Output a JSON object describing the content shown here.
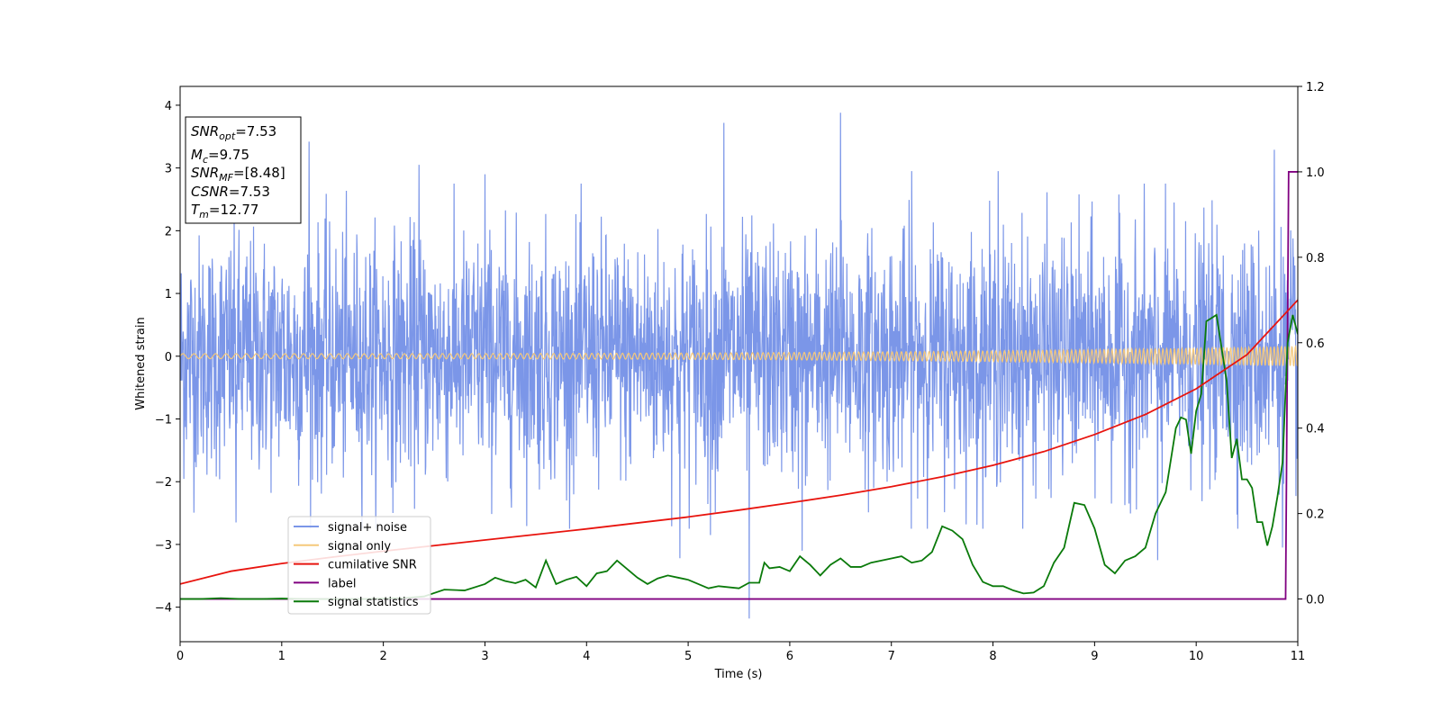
{
  "chart_data": {
    "type": "line",
    "xlabel": "Time (s)",
    "ylabel": "Whitened strain",
    "xlim": [
      0,
      11
    ],
    "ylim": [
      -4.55,
      4.3
    ],
    "y2lim": [
      -0.1,
      1.2
    ],
    "x_ticks": [
      0,
      1,
      2,
      3,
      4,
      5,
      6,
      7,
      8,
      9,
      10,
      11
    ],
    "y_ticks": [
      -4,
      -3,
      -2,
      -1,
      0,
      1,
      2,
      3,
      4
    ],
    "y2_ticks": [
      0.0,
      0.2,
      0.4,
      0.6,
      0.8,
      1.0,
      1.2
    ],
    "y2_tick_labels": [
      "0.0",
      "0.2",
      "0.4",
      "0.6",
      "0.8",
      "1.0",
      "1.2"
    ],
    "grid": false,
    "legend_position": "lower-left",
    "annotation": [
      {
        "sym": "SNR",
        "sub": "opt",
        "value": "=7.53"
      },
      {
        "sym": "M",
        "sub": "c",
        "value": "=9.75"
      },
      {
        "sym": "SNR",
        "sub": "MF",
        "value": "=[8.48]"
      },
      {
        "sym": "CSNR",
        "sub": "",
        "value": "=7.53"
      },
      {
        "sym": "T",
        "sub": "m",
        "value": "=12.77"
      }
    ],
    "series": [
      {
        "name": "signal+ noise",
        "color": "#7b96e8",
        "axis": "left",
        "style": "noise",
        "typical_range": [
          -2.0,
          2.0
        ],
        "spikes": [
          {
            "x": 1.27,
            "y": 3.42
          },
          {
            "x": 5.35,
            "y": 3.72
          },
          {
            "x": 6.5,
            "y": 3.88
          },
          {
            "x": 10.77,
            "y": 3.29
          },
          {
            "x": 5.6,
            "y": -4.18
          },
          {
            "x": 6.12,
            "y": -3.1
          },
          {
            "x": 0.55,
            "y": -2.65
          },
          {
            "x": 4.92,
            "y": -3.22
          },
          {
            "x": 5.22,
            "y": -2.85
          },
          {
            "x": 3.0,
            "y": 2.9
          },
          {
            "x": 7.2,
            "y": 2.95
          },
          {
            "x": 8.05,
            "y": 2.95
          },
          {
            "x": 2.35,
            "y": 3.05
          },
          {
            "x": 9.62,
            "y": -3.25
          },
          {
            "x": 10.85,
            "y": -3.05
          }
        ]
      },
      {
        "name": "signal only",
        "color": "#f5c87a",
        "axis": "left",
        "style": "chirp",
        "amplitude_start": 0.04,
        "amplitude_end": 0.16
      },
      {
        "name": "cumilative SNR",
        "color": "#e8140e",
        "axis": "right",
        "x": [
          0,
          0.5,
          1,
          1.5,
          2,
          2.5,
          3,
          3.5,
          4,
          4.5,
          5,
          5.5,
          6,
          6.5,
          7,
          7.5,
          8,
          8.5,
          9,
          9.5,
          10,
          10.5,
          11
        ],
        "y": [
          0.035,
          0.065,
          0.083,
          0.098,
          0.112,
          0.125,
          0.138,
          0.151,
          0.164,
          0.178,
          0.192,
          0.208,
          0.225,
          0.243,
          0.263,
          0.286,
          0.313,
          0.345,
          0.385,
          0.432,
          0.492,
          0.572,
          0.7
        ]
      },
      {
        "name": "label",
        "color": "#800080",
        "axis": "right",
        "x": [
          0,
          10.88,
          10.91,
          11
        ],
        "y": [
          0.0,
          0.0,
          1.0,
          1.0
        ]
      },
      {
        "name": "signal statistics",
        "color": "#0a7a0a",
        "axis": "right",
        "x": [
          0,
          0.2,
          0.4,
          0.6,
          0.8,
          1.0,
          1.2,
          1.4,
          1.6,
          1.8,
          2.0,
          2.2,
          2.4,
          2.6,
          2.8,
          3.0,
          3.1,
          3.2,
          3.3,
          3.4,
          3.5,
          3.6,
          3.7,
          3.8,
          3.9,
          4.0,
          4.1,
          4.2,
          4.3,
          4.4,
          4.5,
          4.6,
          4.7,
          4.8,
          4.9,
          5.0,
          5.1,
          5.2,
          5.3,
          5.5,
          5.6,
          5.7,
          5.75,
          5.8,
          5.9,
          6.0,
          6.1,
          6.2,
          6.3,
          6.4,
          6.5,
          6.6,
          6.7,
          6.8,
          6.9,
          7.0,
          7.1,
          7.2,
          7.3,
          7.4,
          7.5,
          7.6,
          7.7,
          7.8,
          7.9,
          8.0,
          8.1,
          8.2,
          8.3,
          8.4,
          8.5,
          8.6,
          8.7,
          8.8,
          8.9,
          9.0,
          9.1,
          9.2,
          9.3,
          9.4,
          9.5,
          9.6,
          9.7,
          9.8,
          9.85,
          9.9,
          9.95,
          10.0,
          10.05,
          10.1,
          10.2,
          10.3,
          10.35,
          10.4,
          10.45,
          10.5,
          10.55,
          10.6,
          10.65,
          10.7,
          10.75,
          10.8,
          10.85,
          10.9,
          10.95,
          11.0
        ],
        "y": [
          0.0,
          0.0,
          0.002,
          0.0,
          0.0,
          0.001,
          0.0,
          0.0,
          0.0,
          0.0,
          0.001,
          0.002,
          0.006,
          0.022,
          0.02,
          0.035,
          0.05,
          0.042,
          0.037,
          0.045,
          0.027,
          0.09,
          0.035,
          0.045,
          0.052,
          0.03,
          0.06,
          0.065,
          0.09,
          0.07,
          0.05,
          0.035,
          0.048,
          0.055,
          0.05,
          0.045,
          0.035,
          0.025,
          0.03,
          0.025,
          0.038,
          0.038,
          0.085,
          0.072,
          0.075,
          0.065,
          0.1,
          0.08,
          0.055,
          0.08,
          0.095,
          0.075,
          0.075,
          0.085,
          0.09,
          0.095,
          0.1,
          0.085,
          0.09,
          0.11,
          0.17,
          0.16,
          0.14,
          0.08,
          0.04,
          0.03,
          0.03,
          0.02,
          0.013,
          0.015,
          0.03,
          0.085,
          0.12,
          0.225,
          0.22,
          0.165,
          0.08,
          0.06,
          0.09,
          0.1,
          0.12,
          0.2,
          0.25,
          0.4,
          0.425,
          0.42,
          0.34,
          0.44,
          0.48,
          0.65,
          0.665,
          0.51,
          0.33,
          0.375,
          0.28,
          0.28,
          0.26,
          0.18,
          0.18,
          0.125,
          0.17,
          0.24,
          0.32,
          0.6,
          0.665,
          0.62
        ]
      }
    ]
  }
}
